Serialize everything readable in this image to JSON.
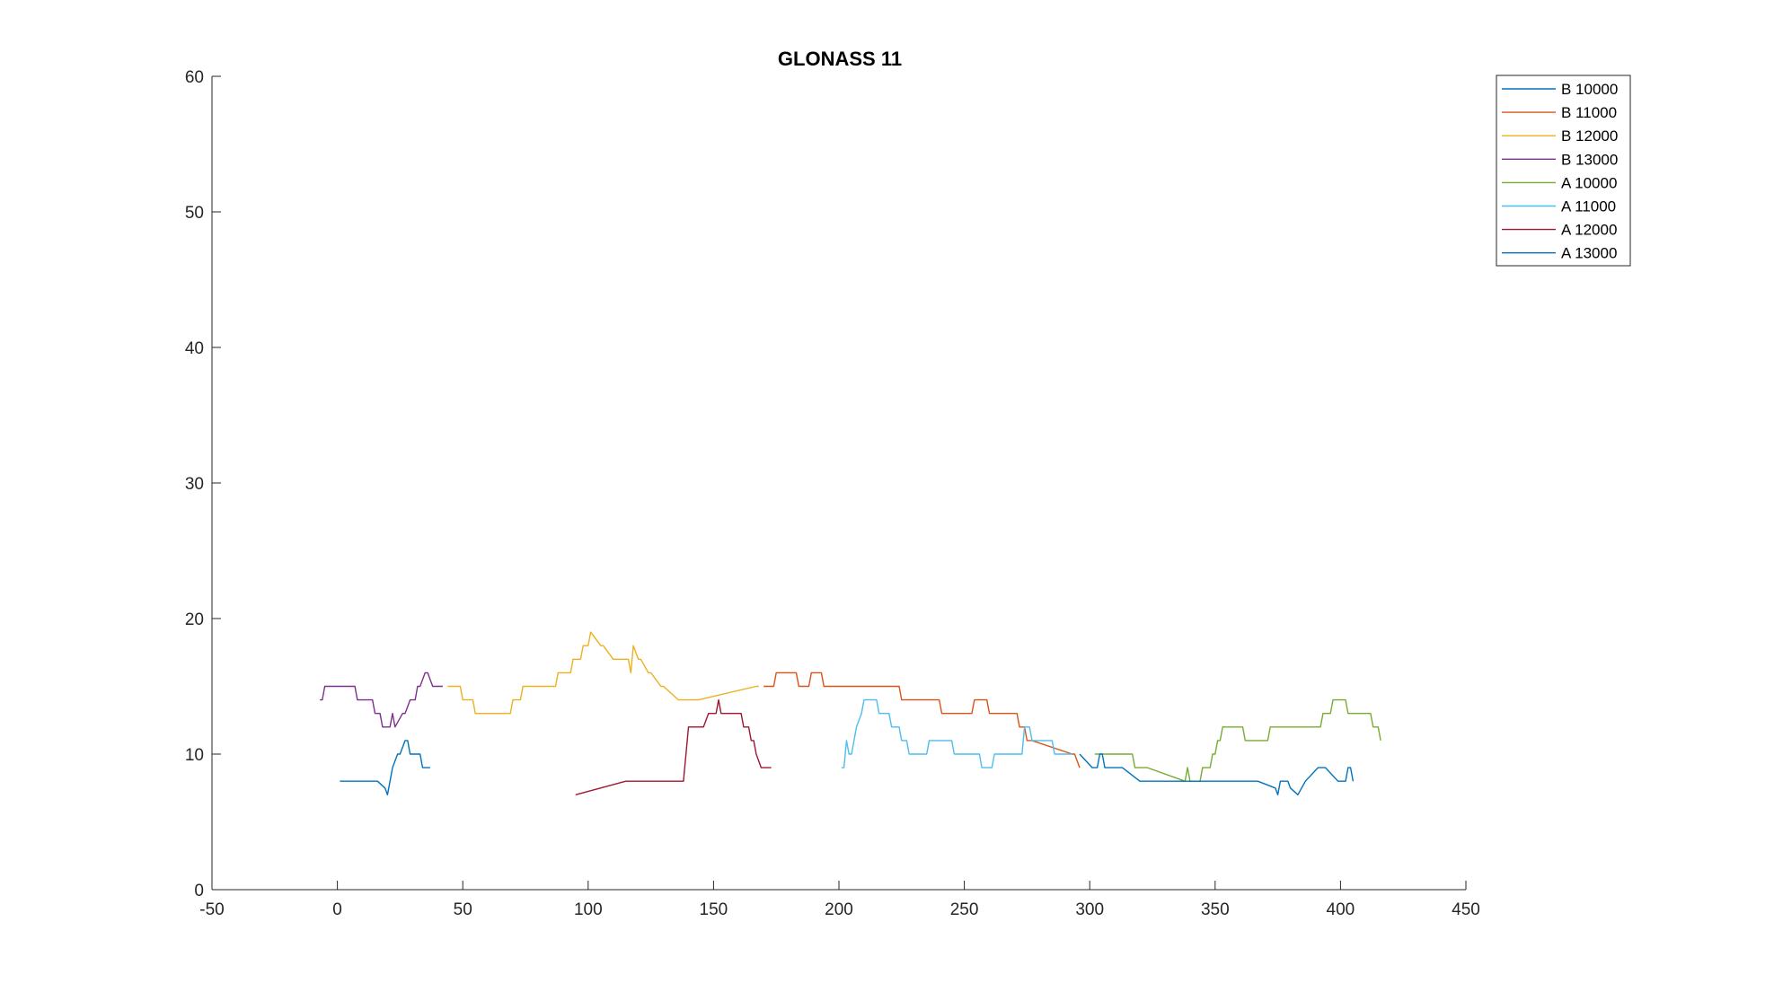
{
  "chart_data": {
    "type": "line",
    "title": "GLONASS 11",
    "xlabel": "",
    "ylabel": "",
    "xlim": [
      -50,
      450
    ],
    "ylim": [
      0,
      60
    ],
    "xticks": [
      -50,
      0,
      50,
      100,
      150,
      200,
      250,
      300,
      350,
      400,
      450
    ],
    "yticks": [
      0,
      10,
      20,
      30,
      40,
      50,
      60
    ],
    "xtick_labels": [
      "-50",
      "0",
      "50",
      "100",
      "150",
      "200",
      "250",
      "300",
      "350",
      "400",
      "450"
    ],
    "ytick_labels": [
      "0",
      "10",
      "20",
      "30",
      "40",
      "50",
      "60"
    ],
    "grid": false,
    "legend_position": "top-right",
    "series": [
      {
        "name": "B 10000",
        "color": "#0072BD",
        "x": [
          1,
          16,
          19,
          20,
          22,
          24,
          25,
          27,
          28,
          29,
          32,
          33,
          34,
          37
        ],
        "y": [
          8,
          8,
          7.5,
          7,
          9,
          10,
          10,
          11,
          11,
          10,
          10,
          10,
          9,
          9
        ]
      },
      {
        "name": "B 11000",
        "color": "#D95319",
        "x": [
          170,
          174,
          175,
          183,
          184,
          188,
          189,
          193,
          194,
          201,
          202,
          224,
          225,
          240,
          241,
          253,
          254,
          259,
          260,
          264,
          265,
          271,
          272,
          274,
          275,
          276,
          277,
          293,
          294,
          296
        ],
        "y": [
          15,
          15,
          16,
          16,
          15,
          15,
          16,
          16,
          15,
          15,
          15,
          15,
          14,
          14,
          13,
          13,
          14,
          14,
          13,
          13,
          13,
          13,
          12,
          12,
          11,
          11,
          11,
          10,
          10,
          9
        ]
      },
      {
        "name": "B 12000",
        "color": "#EDB120",
        "x": [
          44,
          49,
          50,
          54,
          55,
          69,
          70,
          73,
          74,
          87,
          88,
          93,
          94,
          97,
          98,
          100,
          101,
          105,
          106,
          110,
          111,
          115,
          116,
          117,
          118,
          120,
          121,
          124,
          125,
          129,
          130,
          136,
          137,
          143,
          144,
          167,
          168
        ],
        "y": [
          15,
          15,
          14,
          14,
          13,
          13,
          14,
          14,
          15,
          15,
          16,
          16,
          17,
          17,
          18,
          18,
          19,
          18,
          18,
          17,
          17,
          17,
          17,
          16,
          18,
          17,
          17,
          16,
          16,
          15,
          15,
          14,
          14,
          14,
          14,
          15,
          15
        ]
      },
      {
        "name": "B 13000",
        "color": "#7E2F8E",
        "x": [
          -7,
          -6,
          -5,
          -4,
          7,
          8,
          14,
          15,
          17,
          18,
          21,
          22,
          23,
          26,
          27,
          29,
          30,
          31,
          32,
          33,
          35,
          36,
          38,
          39,
          42
        ],
        "y": [
          14,
          14,
          15,
          15,
          15,
          14,
          14,
          13,
          13,
          12,
          12,
          13,
          12,
          13,
          13,
          14,
          14,
          14,
          15,
          15,
          16,
          16,
          15,
          15,
          15
        ]
      },
      {
        "name": "A 10000",
        "color": "#77AC30",
        "x": [
          302,
          303,
          317,
          318,
          323,
          338,
          339,
          340,
          341,
          342,
          344,
          345,
          347,
          348,
          349,
          350,
          351,
          352,
          353,
          355,
          356,
          361,
          362,
          371,
          372,
          392,
          393,
          396,
          397,
          402,
          403,
          412,
          413,
          414,
          415,
          416
        ],
        "y": [
          10,
          10,
          10,
          9,
          9,
          8,
          9,
          8,
          8,
          8,
          8,
          9,
          9,
          9,
          10,
          10,
          11,
          11,
          12,
          12,
          12,
          12,
          11,
          11,
          12,
          12,
          13,
          13,
          14,
          14,
          13,
          13,
          12,
          12,
          12,
          11
        ]
      },
      {
        "name": "A 11000",
        "color": "#4DBEEE",
        "x": [
          201,
          202,
          203,
          204,
          205,
          206,
          207,
          209,
          210,
          215,
          216,
          220,
          221,
          224,
          225,
          227,
          228,
          235,
          236,
          245,
          246,
          250,
          251,
          256,
          257,
          261,
          262,
          273,
          274,
          276,
          277,
          285,
          286,
          293
        ],
        "y": [
          9,
          9,
          11,
          10,
          10,
          11,
          12,
          13,
          14,
          14,
          13,
          13,
          12,
          12,
          11,
          11,
          10,
          10,
          11,
          11,
          10,
          10,
          10,
          10,
          9,
          9,
          10,
          10,
          12,
          12,
          11,
          11,
          10,
          10
        ]
      },
      {
        "name": "A 12000",
        "color": "#A2142F",
        "x": [
          95,
          115,
          138,
          140,
          146,
          148,
          151,
          152,
          153,
          155,
          157,
          161,
          162,
          164,
          165,
          166,
          167,
          169,
          173
        ],
        "y": [
          7,
          8,
          8,
          12,
          12,
          13,
          13,
          14,
          13,
          13,
          13,
          13,
          12,
          12,
          11,
          11,
          10,
          9,
          9
        ]
      },
      {
        "name": "A 13000",
        "color": "#0072BD",
        "x": [
          296,
          301,
          303,
          304,
          305,
          306,
          307,
          312,
          313,
          320,
          321,
          338,
          339,
          367,
          374,
          375,
          376,
          378,
          379,
          380,
          383,
          386,
          391,
          394,
          399,
          400,
          401,
          402,
          403,
          404,
          405
        ],
        "y": [
          10,
          9,
          9,
          10,
          10,
          9,
          9,
          9,
          9,
          8,
          8,
          8,
          8,
          8,
          7.5,
          7,
          8,
          8,
          8,
          7.5,
          7,
          8,
          9,
          9,
          8,
          8,
          8,
          8,
          9,
          9,
          8
        ]
      }
    ]
  }
}
